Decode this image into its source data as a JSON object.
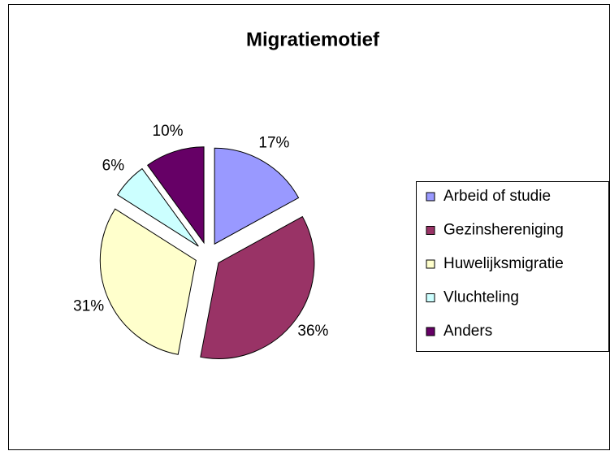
{
  "chart_data": {
    "type": "pie",
    "title": "Migratiemotief",
    "categories": [
      "Arbeid of studie",
      "Gezinshereniging",
      "Huwelijksmigratie",
      "Vluchteling",
      "Anders"
    ],
    "values": [
      17,
      36,
      31,
      6,
      10
    ],
    "value_labels": [
      "17%",
      "36%",
      "31%",
      "6%",
      "10%"
    ],
    "colors": [
      "#9999ff",
      "#993366",
      "#ffffcc",
      "#ccffff",
      "#660066"
    ],
    "legend": "right"
  }
}
